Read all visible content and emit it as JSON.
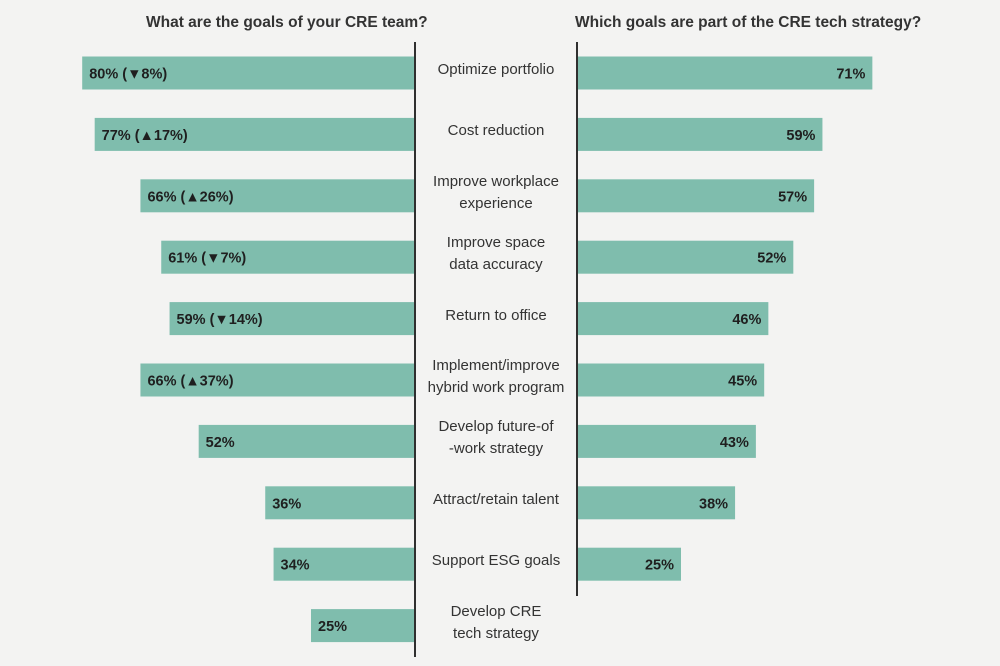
{
  "headings": {
    "left": "What are the goals of your CRE team?",
    "right": "Which goals are part of the CRE tech strategy?"
  },
  "colors": {
    "bar": "#7fbdad",
    "axis": "#2f2f2f",
    "label": "#1f1f1f"
  },
  "chart_data": [
    {
      "type": "bar",
      "orientation": "horizontal-left",
      "title": "What are the goals of your CRE team?",
      "categories": [
        [
          "Optimize portfolio"
        ],
        [
          "Cost reduction"
        ],
        [
          "Improve workplace",
          "experience"
        ],
        [
          "Improve space",
          "data accuracy"
        ],
        [
          "Return to office"
        ],
        [
          "Implement/improve",
          "hybrid work program"
        ],
        [
          "Develop future-of",
          "-work strategy"
        ],
        [
          "Attract/retain talent"
        ],
        [
          "Support ESG goals"
        ],
        [
          "Develop CRE",
          "tech strategy"
        ]
      ],
      "values": [
        80,
        77,
        66,
        61,
        59,
        66,
        52,
        36,
        34,
        25
      ],
      "value_labels": [
        "80% (▼8%)",
        "77% (▲17%)",
        "66% (▲26%)",
        "61% (▼7%)",
        "59% (▼14%)",
        "66% (▲37%)",
        "52%",
        "36%",
        "34%",
        "25%"
      ],
      "xlim": [
        0,
        100
      ]
    },
    {
      "type": "bar",
      "orientation": "horizontal-right",
      "title": "Which goals are part of the CRE tech strategy?",
      "categories": [
        "Optimize portfolio",
        "Cost reduction",
        "Improve workplace experience",
        "Improve space data accuracy",
        "Return to office",
        "Implement/improve hybrid work program",
        "Develop future-of-work strategy",
        "Attract/retain talent",
        "Support ESG goals"
      ],
      "values": [
        71,
        59,
        57,
        52,
        46,
        45,
        43,
        38,
        25
      ],
      "value_labels": [
        "71%",
        "59%",
        "57%",
        "52%",
        "46%",
        "45%",
        "43%",
        "38%",
        "25%"
      ],
      "xlim": [
        0,
        100
      ]
    }
  ]
}
